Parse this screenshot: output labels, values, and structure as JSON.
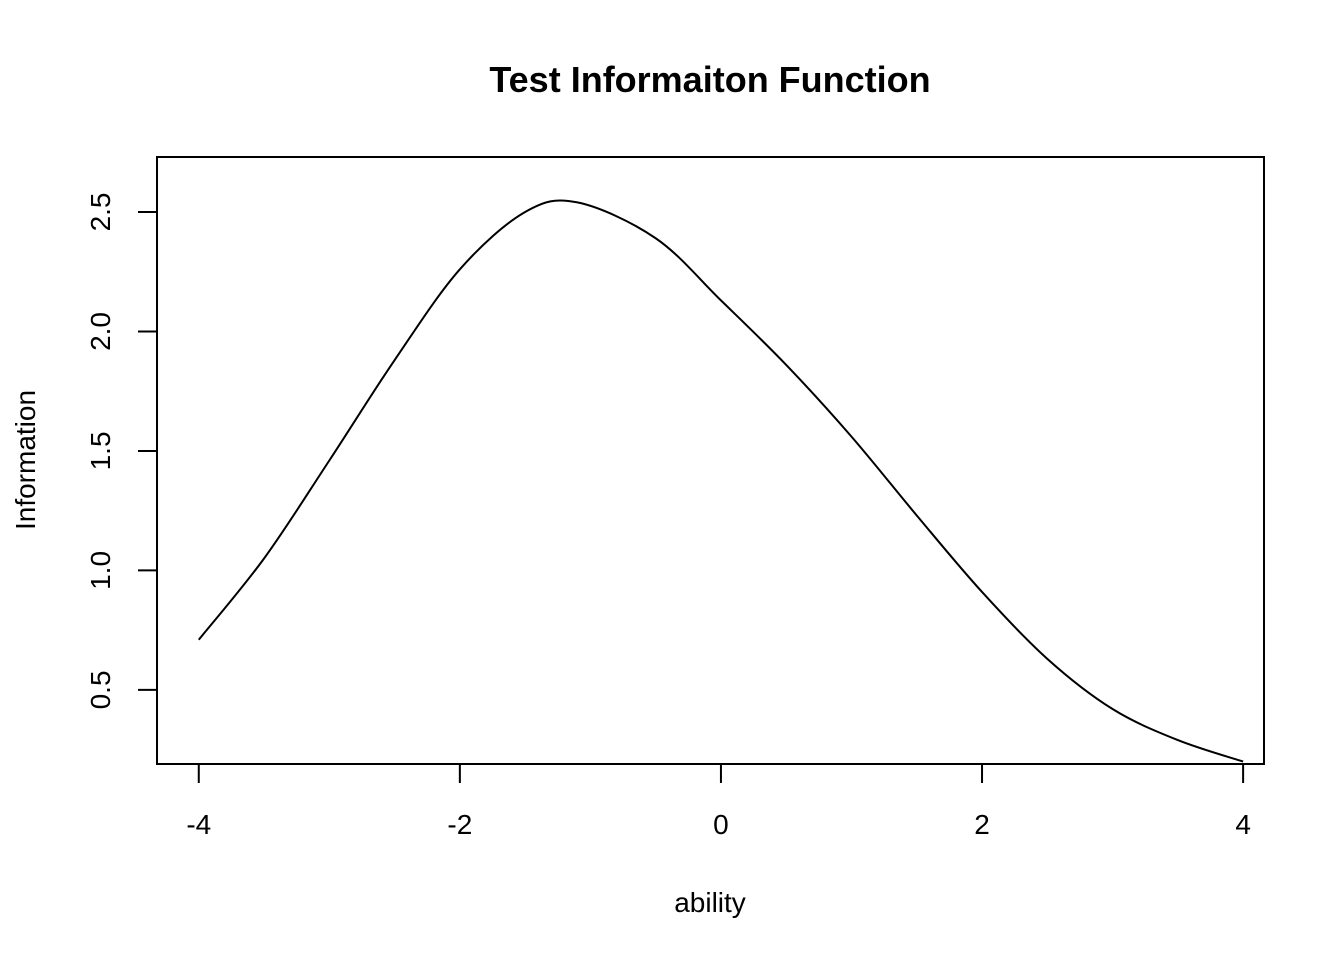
{
  "chart_data": {
    "type": "line",
    "title": "Test Informaiton Function",
    "xlabel": "ability",
    "ylabel": "Information",
    "xlim": [
      -4.32,
      4.16
    ],
    "ylim": [
      0.19,
      2.73
    ],
    "x_ticks": [
      -4,
      -2,
      0,
      2,
      4
    ],
    "x_tick_labels": [
      "-4",
      "-2",
      "0",
      "2",
      "4"
    ],
    "y_ticks": [
      0.5,
      1.0,
      1.5,
      2.0,
      2.5
    ],
    "y_tick_labels": [
      "0.5",
      "1.0",
      "1.5",
      "2.0",
      "2.5"
    ],
    "grid": false,
    "series": [
      {
        "color": "#000000",
        "x": [
          -4.0,
          -3.5,
          -3.0,
          -2.5,
          -2.0,
          -1.5,
          -1.1,
          -0.5,
          0.0,
          0.5,
          1.0,
          1.5,
          2.0,
          2.5,
          3.0,
          3.5,
          4.0
        ],
        "y": [
          0.71,
          1.05,
          1.46,
          1.88,
          2.26,
          2.5,
          2.54,
          2.39,
          2.13,
          1.86,
          1.56,
          1.23,
          0.91,
          0.63,
          0.42,
          0.29,
          0.2
        ]
      }
    ]
  }
}
